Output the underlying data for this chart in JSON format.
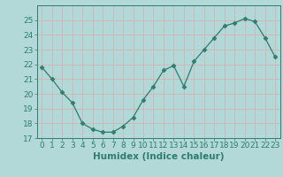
{
  "x": [
    0,
    1,
    2,
    3,
    4,
    5,
    6,
    7,
    8,
    9,
    10,
    11,
    12,
    13,
    14,
    15,
    16,
    17,
    18,
    19,
    20,
    21,
    22,
    23
  ],
  "y": [
    21.8,
    21.0,
    20.1,
    19.4,
    18.0,
    17.6,
    17.4,
    17.4,
    17.8,
    18.4,
    19.6,
    20.5,
    21.6,
    21.9,
    20.5,
    22.2,
    23.0,
    23.8,
    24.6,
    24.8,
    25.1,
    24.9,
    23.8,
    22.5
  ],
  "line_color": "#2e7d6e",
  "marker": "D",
  "marker_size": 2.5,
  "background_color": "#b2d8d8",
  "grid_color": "#d0b8b8",
  "xlabel": "Humidex (Indice chaleur)",
  "ylim": [
    17,
    26
  ],
  "xlim": [
    -0.5,
    23.5
  ],
  "yticks": [
    17,
    18,
    19,
    20,
    21,
    22,
    23,
    24,
    25
  ],
  "xticks": [
    0,
    1,
    2,
    3,
    4,
    5,
    6,
    7,
    8,
    9,
    10,
    11,
    12,
    13,
    14,
    15,
    16,
    17,
    18,
    19,
    20,
    21,
    22,
    23
  ],
  "tick_color": "#2e7d6e",
  "label_color": "#2e7d6e",
  "font_size": 6.5,
  "xlabel_fontsize": 7.5
}
